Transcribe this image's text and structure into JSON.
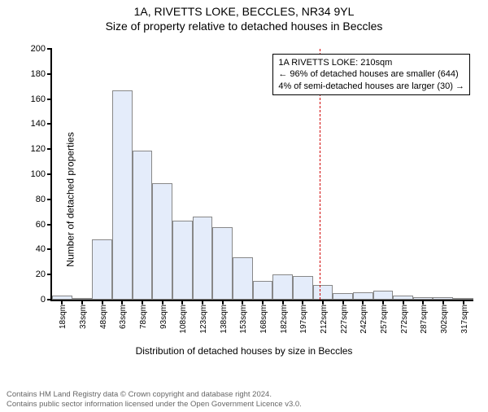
{
  "title_line1": "1A, RIVETTS LOKE, BECCLES, NR34 9YL",
  "title_line2": "Size of property relative to detached houses in Beccles",
  "ylabel": "Number of detached properties",
  "xlabel": "Distribution of detached houses by size in Beccles",
  "chart": {
    "type": "histogram",
    "bar_fill": "#e4ecfa",
    "bar_stroke": "#888888",
    "axis_color": "#000000",
    "ylim": [
      0,
      200
    ],
    "ytick_step": 20,
    "xticks_sqm": [
      18,
      33,
      48,
      63,
      78,
      93,
      108,
      123,
      138,
      153,
      168,
      182,
      197,
      212,
      227,
      242,
      257,
      272,
      287,
      302,
      317
    ],
    "xtick_unit": "sqm",
    "values": [
      3,
      0,
      48,
      167,
      119,
      93,
      63,
      66,
      58,
      34,
      15,
      20,
      19,
      12,
      5,
      6,
      7,
      3,
      2,
      2,
      1
    ],
    "reference_line": {
      "at_sqm": 210,
      "color": "#d00000",
      "dash": "4,4"
    },
    "annotation": {
      "line1": "1A RIVETTS LOKE: 210sqm",
      "line2": "← 96% of detached houses are smaller (644)",
      "line3": "4% of semi-detached houses are larger (30) →",
      "fontsize": 11
    }
  },
  "footer_line1": "Contains HM Land Registry data © Crown copyright and database right 2024.",
  "footer_line2": "Contains public sector information licensed under the Open Government Licence v3.0."
}
